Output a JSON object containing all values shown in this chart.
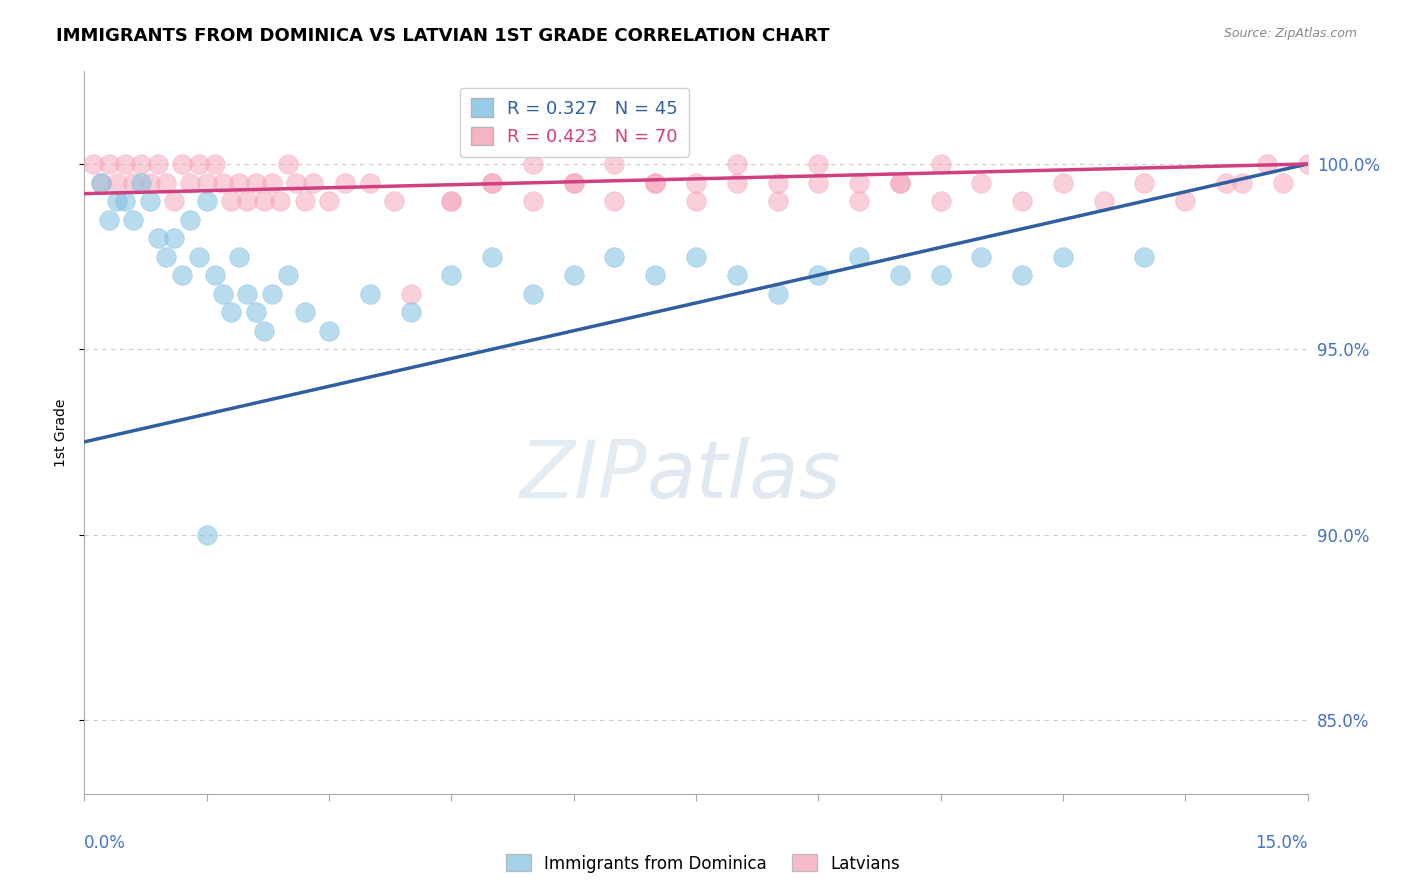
{
  "title": "IMMIGRANTS FROM DOMINICA VS LATVIAN 1ST GRADE CORRELATION CHART",
  "source": "Source: ZipAtlas.com",
  "ylabel": "1st Grade",
  "xmin": 0.0,
  "xmax": 15.0,
  "ymin": 83.0,
  "ymax": 102.5,
  "yticks": [
    85.0,
    90.0,
    95.0,
    100.0
  ],
  "ytick_labels": [
    "85.0%",
    "90.0%",
    "95.0%",
    "100.0%"
  ],
  "blue_color": "#7fbfdf",
  "pink_color": "#f4a0b5",
  "blue_line_color": "#3060a0",
  "pink_line_color": "#d04080",
  "legend_blue_label": "Immigrants from Dominica",
  "legend_pink_label": "Latvians",
  "blue_R": 0.327,
  "blue_N": 45,
  "pink_R": 0.423,
  "pink_N": 70,
  "grid_color": "#cccccc",
  "right_axis_color": "#4472C4",
  "blue_scatter_x": [
    0.2,
    0.3,
    0.4,
    0.5,
    0.6,
    0.7,
    0.8,
    0.9,
    1.0,
    1.1,
    1.2,
    1.3,
    1.4,
    1.5,
    1.6,
    1.7,
    1.8,
    1.9,
    2.0,
    2.1,
    2.2,
    2.3,
    2.5,
    2.7,
    3.0,
    3.5,
    4.0,
    4.5,
    5.0,
    5.5,
    6.0,
    6.5,
    7.0,
    7.5,
    8.0,
    8.5,
    9.0,
    9.5,
    10.0,
    10.5,
    11.0,
    11.5,
    12.0,
    13.0,
    1.5
  ],
  "blue_scatter_y": [
    99.5,
    98.5,
    99.0,
    99.0,
    98.5,
    99.5,
    99.0,
    98.0,
    97.5,
    98.0,
    97.0,
    98.5,
    97.5,
    99.0,
    97.0,
    96.5,
    96.0,
    97.5,
    96.5,
    96.0,
    95.5,
    96.5,
    97.0,
    96.0,
    95.5,
    96.5,
    96.0,
    97.0,
    97.5,
    96.5,
    97.0,
    97.5,
    97.0,
    97.5,
    97.0,
    96.5,
    97.0,
    97.5,
    97.0,
    97.0,
    97.5,
    97.0,
    97.5,
    97.5,
    90.0
  ],
  "pink_scatter_x": [
    0.1,
    0.2,
    0.3,
    0.4,
    0.5,
    0.6,
    0.7,
    0.8,
    0.9,
    1.0,
    1.1,
    1.2,
    1.3,
    1.4,
    1.5,
    1.6,
    1.7,
    1.8,
    1.9,
    2.0,
    2.1,
    2.2,
    2.3,
    2.4,
    2.5,
    2.6,
    2.7,
    2.8,
    3.0,
    3.2,
    3.5,
    3.8,
    4.0,
    4.5,
    5.0,
    5.5,
    6.0,
    6.5,
    7.0,
    7.5,
    8.0,
    8.5,
    9.0,
    9.5,
    10.0,
    10.5,
    11.0,
    11.5,
    12.0,
    12.5,
    13.0,
    13.5,
    14.0,
    14.2,
    14.5,
    14.7,
    15.0,
    4.5,
    5.0,
    5.5,
    6.0,
    6.5,
    7.0,
    7.5,
    8.0,
    8.5,
    9.0,
    9.5,
    10.0,
    10.5
  ],
  "pink_scatter_y": [
    100.0,
    99.5,
    100.0,
    99.5,
    100.0,
    99.5,
    100.0,
    99.5,
    100.0,
    99.5,
    99.0,
    100.0,
    99.5,
    100.0,
    99.5,
    100.0,
    99.5,
    99.0,
    99.5,
    99.0,
    99.5,
    99.0,
    99.5,
    99.0,
    100.0,
    99.5,
    99.0,
    99.5,
    99.0,
    99.5,
    99.5,
    99.0,
    96.5,
    99.0,
    99.5,
    99.0,
    99.5,
    99.0,
    99.5,
    99.0,
    99.5,
    99.0,
    99.5,
    99.0,
    99.5,
    99.0,
    99.5,
    99.0,
    99.5,
    99.0,
    99.5,
    99.0,
    99.5,
    99.5,
    100.0,
    99.5,
    100.0,
    99.0,
    99.5,
    100.0,
    99.5,
    100.0,
    99.5,
    99.5,
    100.0,
    99.5,
    100.0,
    99.5,
    99.5,
    100.0
  ],
  "blue_trend_x": [
    0.0,
    15.0
  ],
  "blue_trend_y": [
    92.5,
    100.0
  ],
  "pink_trend_x": [
    0.0,
    15.0
  ],
  "pink_trend_y": [
    99.2,
    100.0
  ]
}
